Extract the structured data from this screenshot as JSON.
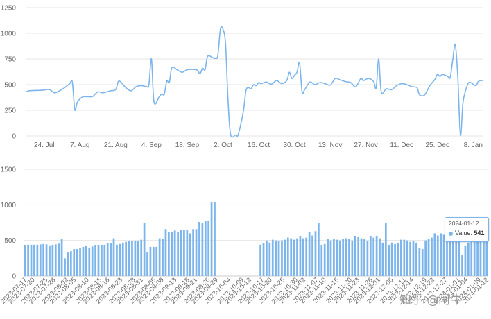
{
  "chart_data": [
    {
      "type": "line",
      "color": "#7cb5ec",
      "ylim": [
        0,
        1250
      ],
      "yticks": [
        "0",
        "250",
        "500",
        "750",
        "1000",
        "1250"
      ],
      "ytick_values": [
        0,
        250,
        500,
        750,
        1000,
        1250
      ],
      "xlim": [
        "2023-07-17",
        "2024-01-12"
      ],
      "xticks": [
        {
          "date": "2023-07-24",
          "label": "24. Jul"
        },
        {
          "date": "2023-08-07",
          "label": "7. Aug"
        },
        {
          "date": "2023-08-21",
          "label": "21. Aug"
        },
        {
          "date": "2023-09-04",
          "label": "4. Sep"
        },
        {
          "date": "2023-09-18",
          "label": "18. Sep"
        },
        {
          "date": "2023-10-02",
          "label": "2. Oct"
        },
        {
          "date": "2023-10-16",
          "label": "16. Oct"
        },
        {
          "date": "2023-10-30",
          "label": "30. Oct"
        },
        {
          "date": "2023-11-13",
          "label": "13. Nov"
        },
        {
          "date": "2023-11-27",
          "label": "27. Nov"
        },
        {
          "date": "2023-12-11",
          "label": "11. Dec"
        },
        {
          "date": "2023-12-25",
          "label": "25. Dec"
        },
        {
          "date": "2024-01-08",
          "label": "8. Jan"
        }
      ],
      "points": [
        [
          "2023-07-17",
          430
        ],
        [
          "2023-07-18",
          440
        ],
        [
          "2023-07-20",
          443
        ],
        [
          "2023-07-23",
          445
        ],
        [
          "2023-07-26",
          452
        ],
        [
          "2023-07-28",
          420
        ],
        [
          "2023-07-30",
          440
        ],
        [
          "2023-08-01",
          470
        ],
        [
          "2023-08-03",
          510
        ],
        [
          "2023-08-04",
          525
        ],
        [
          "2023-08-05",
          255
        ],
        [
          "2023-08-06",
          330
        ],
        [
          "2023-08-08",
          380
        ],
        [
          "2023-08-10",
          382
        ],
        [
          "2023-08-12",
          385
        ],
        [
          "2023-08-14",
          430
        ],
        [
          "2023-08-16",
          420
        ],
        [
          "2023-08-19",
          440
        ],
        [
          "2023-08-21",
          452
        ],
        [
          "2023-08-22",
          530
        ],
        [
          "2023-08-23",
          525
        ],
        [
          "2023-08-25",
          470
        ],
        [
          "2023-08-27",
          440
        ],
        [
          "2023-08-29",
          480
        ],
        [
          "2023-08-31",
          490
        ],
        [
          "2023-09-02",
          482
        ],
        [
          "2023-09-03",
          498
        ],
        [
          "2023-09-04",
          750
        ],
        [
          "2023-09-05",
          330
        ],
        [
          "2023-09-07",
          380
        ],
        [
          "2023-09-08",
          410
        ],
        [
          "2023-09-09",
          405
        ],
        [
          "2023-09-10",
          535
        ],
        [
          "2023-09-11",
          520
        ],
        [
          "2023-09-12",
          665
        ],
        [
          "2023-09-14",
          645
        ],
        [
          "2023-09-16",
          620
        ],
        [
          "2023-09-18",
          645
        ],
        [
          "2023-09-20",
          648
        ],
        [
          "2023-09-22",
          640
        ],
        [
          "2023-09-23",
          605
        ],
        [
          "2023-09-24",
          660
        ],
        [
          "2023-09-25",
          645
        ],
        [
          "2023-09-26",
          775
        ],
        [
          "2023-09-28",
          762
        ],
        [
          "2023-09-29",
          755
        ],
        [
          "2023-09-30",
          785
        ],
        [
          "2023-10-01",
          1040
        ],
        [
          "2023-10-02",
          1040
        ],
        [
          "2023-10-03",
          900
        ],
        [
          "2023-10-04",
          350
        ],
        [
          "2023-10-05",
          15
        ],
        [
          "2023-10-07",
          10
        ],
        [
          "2023-10-08",
          15
        ],
        [
          "2023-10-10",
          240
        ],
        [
          "2023-10-11",
          440
        ],
        [
          "2023-10-12",
          470
        ],
        [
          "2023-10-13",
          460
        ],
        [
          "2023-10-14",
          500
        ],
        [
          "2023-10-15",
          490
        ],
        [
          "2023-10-16",
          520
        ],
        [
          "2023-10-17",
          510
        ],
        [
          "2023-10-19",
          525
        ],
        [
          "2023-10-21",
          505
        ],
        [
          "2023-10-23",
          540
        ],
        [
          "2023-10-25",
          510
        ],
        [
          "2023-10-27",
          540
        ],
        [
          "2023-10-28",
          620
        ],
        [
          "2023-10-29",
          560
        ],
        [
          "2023-10-30",
          590
        ],
        [
          "2023-10-31",
          620
        ],
        [
          "2023-11-01",
          710
        ],
        [
          "2023-11-02",
          430
        ],
        [
          "2023-11-03",
          450
        ],
        [
          "2023-11-05",
          525
        ],
        [
          "2023-11-07",
          500
        ],
        [
          "2023-11-09",
          520
        ],
        [
          "2023-11-11",
          510
        ],
        [
          "2023-11-13",
          495
        ],
        [
          "2023-11-15",
          560
        ],
        [
          "2023-11-17",
          545
        ],
        [
          "2023-11-19",
          530
        ],
        [
          "2023-11-21",
          520
        ],
        [
          "2023-11-23",
          480
        ],
        [
          "2023-11-25",
          560
        ],
        [
          "2023-11-26",
          540
        ],
        [
          "2023-11-28",
          560
        ],
        [
          "2023-11-30",
          530
        ],
        [
          "2023-12-01",
          470
        ],
        [
          "2023-12-02",
          750
        ],
        [
          "2023-12-03",
          430
        ],
        [
          "2023-12-05",
          460
        ],
        [
          "2023-12-07",
          450
        ],
        [
          "2023-12-09",
          490
        ],
        [
          "2023-12-11",
          510
        ],
        [
          "2023-12-13",
          500
        ],
        [
          "2023-12-15",
          480
        ],
        [
          "2023-12-17",
          470
        ],
        [
          "2023-12-18",
          400
        ],
        [
          "2023-12-20",
          400
        ],
        [
          "2023-12-22",
          490
        ],
        [
          "2023-12-24",
          550
        ],
        [
          "2023-12-25",
          600
        ],
        [
          "2023-12-26",
          580
        ],
        [
          "2023-12-27",
          600
        ],
        [
          "2023-12-29",
          580
        ],
        [
          "2023-12-30",
          570
        ],
        [
          "2023-12-31",
          740
        ],
        [
          "2024-01-01",
          890
        ],
        [
          "2024-01-02",
          560
        ],
        [
          "2024-01-03",
          10
        ],
        [
          "2024-01-04",
          320
        ],
        [
          "2024-01-05",
          440
        ],
        [
          "2024-01-06",
          510
        ],
        [
          "2024-01-07",
          520
        ],
        [
          "2024-01-09",
          490
        ],
        [
          "2024-01-10",
          530
        ],
        [
          "2024-01-11",
          540
        ],
        [
          "2024-01-12",
          541
        ]
      ]
    },
    {
      "type": "bar",
      "color": "#7cb5ec",
      "ylim": [
        0,
        1500
      ],
      "yticks": [
        "0",
        "500",
        "1000",
        "1500"
      ],
      "ytick_values": [
        0,
        500,
        1000,
        1500
      ],
      "xlim": [
        "2023-07-17",
        "2024-01-12"
      ],
      "xtick_labels": [
        "2023-07-17",
        "2023-07-20",
        "2023-07-25",
        "2023-07-28",
        "2023-08-02",
        "2023-08-05",
        "2023-08-10",
        "2023-08-15",
        "2023-08-18",
        "2023-08-23",
        "2023-08-28",
        "2023-08-31",
        "2023-09-05",
        "2023-09-08",
        "2023-09-13",
        "2023-09-18",
        "2023-09-21",
        "2023-09-26",
        "2023-09-29",
        "2023-10-04",
        "2023-10-09",
        "2023-10-12",
        "2023-10-17",
        "2023-10-20",
        "2023-10-25",
        "2023-10-30",
        "2023-11-02",
        "2023-11-07",
        "2023-11-10",
        "2023-11-15",
        "2023-11-20",
        "2023-11-23",
        "2023-11-28",
        "2023-12-01",
        "2023-12-06",
        "2023-12-11",
        "2023-12-14",
        "2023-12-19",
        "2023-12-22",
        "2023-12-27",
        "2024-01-01",
        "2024-01-04",
        "2024-01-09",
        "2024-01-12"
      ],
      "values": [
        430,
        440,
        440,
        440,
        440,
        445,
        450,
        445,
        420,
        430,
        445,
        455,
        520,
        250,
        330,
        350,
        380,
        380,
        395,
        410,
        420,
        400,
        415,
        430,
        430,
        430,
        440,
        460,
        460,
        530,
        440,
        450,
        470,
        480,
        490,
        490,
        490,
        490,
        510,
        750,
        330,
        410,
        410,
        410,
        530,
        520,
        660,
        620,
        620,
        640,
        620,
        650,
        650,
        650,
        600,
        660,
        660,
        760,
        740,
        770,
        770,
        1040,
        1040,
        null,
        null,
        null,
        null,
        null,
        null,
        null,
        null,
        null,
        null,
        null,
        null,
        null,
        null,
        440,
        460,
        500,
        470,
        510,
        500,
        490,
        500,
        510,
        540,
        530,
        510,
        530,
        560,
        530,
        540,
        620,
        570,
        630,
        740,
        430,
        450,
        525,
        500,
        520,
        510,
        500,
        525,
        530,
        520,
        500,
        560,
        545,
        530,
        520,
        490,
        560,
        540,
        560,
        530,
        470,
        740,
        430,
        470,
        450,
        460,
        510,
        510,
        500,
        480,
        490,
        470,
        400,
        380,
        500,
        520,
        540,
        600,
        570,
        600,
        580,
        590,
        560,
        740,
        710,
        690,
        300,
        420,
        470,
        520,
        480,
        480,
        500,
        510,
        541
      ]
    }
  ],
  "tooltip": {
    "date": "2024-01-12",
    "label": "Value:",
    "value": "541"
  },
  "watermark": "知乎 @阿牛"
}
